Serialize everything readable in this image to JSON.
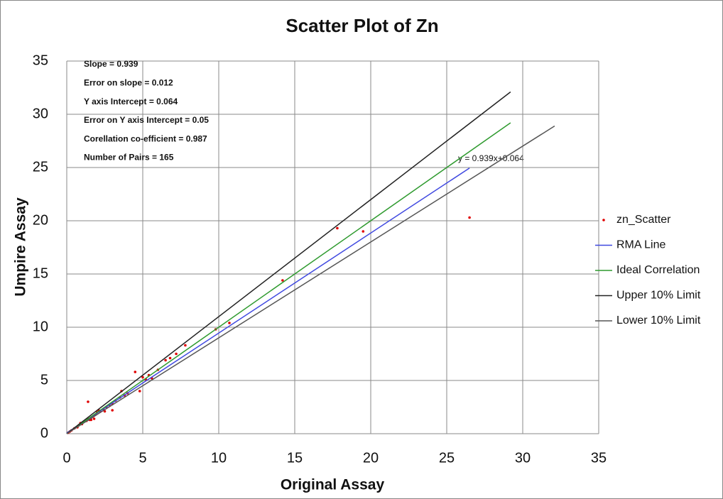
{
  "chart_data": {
    "type": "scatter",
    "title": "Scatter Plot of Zn",
    "x_label": "Original Assay",
    "y_label": "Umpire Assay",
    "annotations": [
      "Slope = 0.939",
      "Error on slope = 0.012",
      "Y axis Intercept = 0.064",
      "Error on Y axis Intercept = 0.05",
      "Corellation co-efficient = 0.987",
      "Number of Pairs = 165"
    ],
    "equation": "y = 0.939x+0.064",
    "xlim": [
      0,
      35
    ],
    "ylim": [
      0,
      35
    ],
    "xticks": [
      0,
      5,
      10,
      15,
      20,
      25,
      30,
      35
    ],
    "yticks": [
      0,
      5,
      10,
      15,
      20,
      25,
      30,
      35
    ],
    "grid": true,
    "legend": "right",
    "series": [
      {
        "name": "zn_Scatter",
        "color": "#e00000",
        "mode": "markers",
        "x": [
          0.1,
          0.2,
          0.3,
          0.5,
          0.7,
          0.8,
          1.0,
          1.1,
          1.3,
          1.4,
          1.5,
          1.6,
          1.7,
          1.8,
          1.9,
          2.0,
          2.2,
          2.4,
          2.6,
          2.8,
          3.0,
          3.2,
          1.4,
          3.0,
          3.5,
          3.6,
          3.8,
          4.0,
          4.5,
          4.8,
          5.0,
          5.2,
          5.4,
          5.6,
          6.0,
          6.5,
          6.8,
          7.2,
          7.8,
          9.8,
          10.7,
          14.2,
          17.8,
          19.5,
          26.5,
          1.6,
          1.8,
          2.1,
          2.5,
          0.9
        ],
        "values": [
          0.1,
          0.2,
          0.3,
          0.5,
          0.6,
          0.8,
          0.9,
          1.1,
          1.2,
          1.4,
          1.3,
          1.5,
          1.6,
          1.7,
          1.8,
          2.0,
          2.1,
          2.3,
          2.5,
          2.7,
          2.8,
          3.1,
          3.0,
          2.2,
          3.4,
          4.0,
          3.6,
          3.8,
          5.8,
          4.0,
          5.3,
          5.1,
          5.5,
          5.2,
          6.0,
          6.9,
          7.1,
          7.5,
          8.3,
          9.8,
          10.4,
          14.4,
          19.3,
          19.0,
          20.3,
          1.3,
          1.4,
          2.2,
          2.1,
          1.0
        ]
      },
      {
        "name": "RMA Line",
        "color": "#3f48e0",
        "mode": "lines",
        "x": [
          0,
          26.5
        ],
        "values": [
          0.064,
          24.95
        ]
      },
      {
        "name": "Ideal Correlation",
        "color": "#2e9a2e",
        "mode": "lines",
        "x": [
          0,
          29.2
        ],
        "values": [
          0,
          29.2
        ]
      },
      {
        "name": "Upper 10% Limit",
        "color": "#222222",
        "mode": "lines",
        "x": [
          0,
          29.2
        ],
        "values": [
          0,
          32.1
        ]
      },
      {
        "name": "Lower 10% Limit",
        "color": "#555555",
        "mode": "lines",
        "x": [
          0,
          32.1
        ],
        "values": [
          0,
          28.9
        ]
      }
    ]
  }
}
